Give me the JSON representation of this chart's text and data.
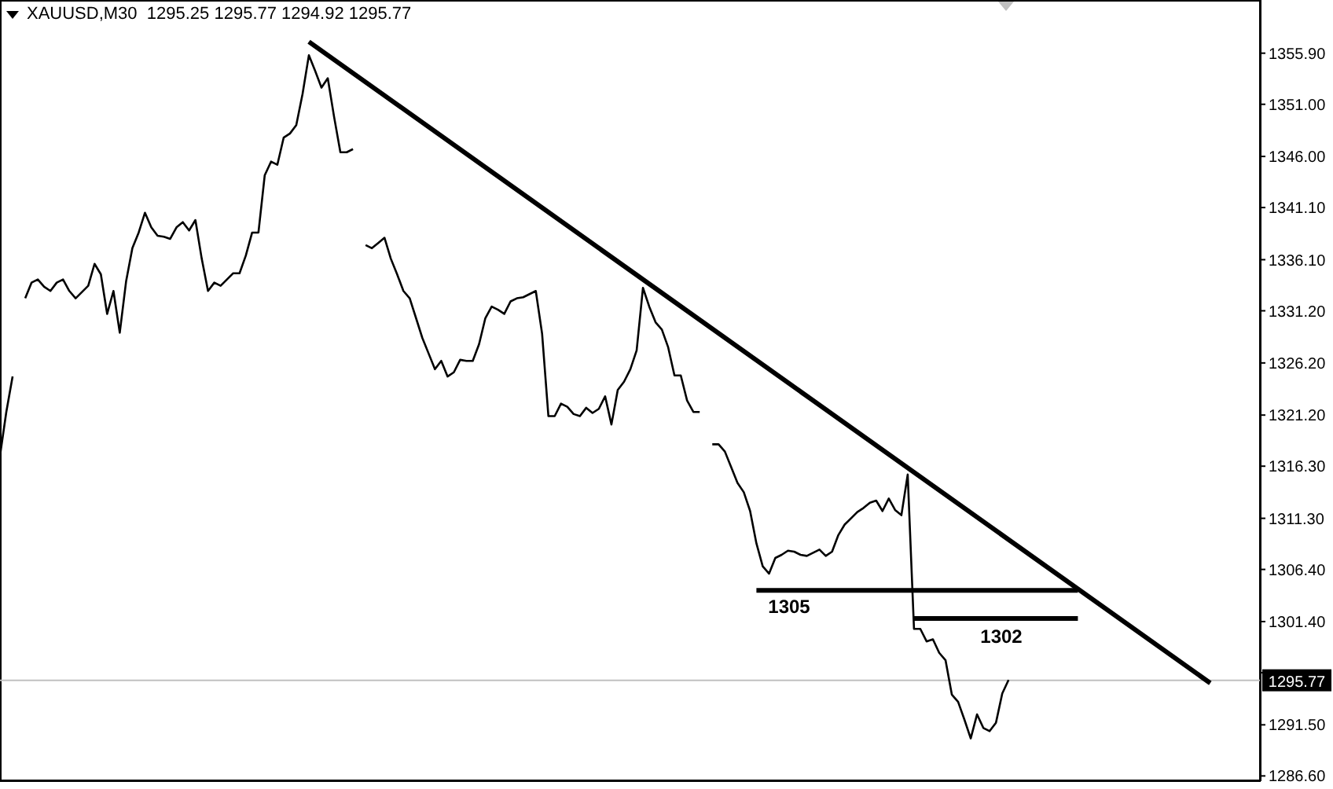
{
  "chart_data": {
    "type": "line",
    "title": "XAUUSD,M30  1295.25 1295.77 1294.92 1295.77",
    "categories": [
      null,
      null,
      null,
      null,
      null,
      null,
      null,
      null,
      null,
      null,
      null,
      null,
      null,
      null,
      null,
      null,
      null,
      null,
      null,
      null,
      null,
      null,
      null,
      null,
      null,
      null,
      null,
      null,
      null,
      null,
      null,
      null,
      null,
      null,
      null,
      null,
      null,
      null,
      null,
      null,
      null,
      null,
      null,
      null,
      null,
      null,
      null,
      null,
      null,
      null,
      null,
      null,
      null,
      null,
      null,
      null,
      null,
      null,
      null,
      null,
      null,
      null,
      null,
      null,
      null,
      null,
      null,
      null,
      null,
      null,
      null,
      null,
      null,
      null,
      null,
      null,
      null,
      null,
      null,
      null,
      null,
      null,
      null,
      null,
      null,
      null,
      null,
      null,
      null,
      null,
      null,
      null,
      null,
      null,
      null,
      null,
      null,
      null,
      null,
      null,
      null,
      null,
      null,
      null,
      null,
      null,
      null,
      null,
      null,
      null,
      null,
      null,
      null,
      null,
      null,
      null,
      null,
      null,
      null,
      null,
      null,
      null,
      null,
      null,
      null,
      null,
      null,
      null,
      null,
      null,
      null,
      null,
      null,
      null,
      null,
      null,
      null,
      null,
      null,
      null,
      null,
      null,
      null,
      null,
      null,
      null,
      null,
      null,
      null,
      null,
      null,
      null,
      null,
      null,
      null,
      null,
      null,
      null,
      null,
      null,
      null,
      null,
      null,
      null,
      null,
      null,
      null,
      null,
      null,
      null,
      null,
      null,
      null,
      null,
      null,
      null,
      null,
      null,
      null,
      null,
      null,
      null,
      null,
      null,
      null,
      null,
      null,
      null,
      null,
      null,
      null,
      null,
      null,
      null,
      null,
      null,
      null,
      null,
      null,
      null,
      null
    ],
    "ylim": [
      1286.1,
      1361.0
    ],
    "yticks": [
      {
        "value": 1286.6,
        "label": "1286.60"
      },
      {
        "value": 1291.5,
        "label": "1291.50"
      },
      {
        "value": 1296.5,
        "label": null
      },
      {
        "value": 1301.4,
        "label": "1301.40"
      },
      {
        "value": 1306.4,
        "label": "1306.40"
      },
      {
        "value": 1311.3,
        "label": "1311.30"
      },
      {
        "value": 1316.3,
        "label": "1316.30"
      },
      {
        "value": 1321.2,
        "label": "1321.20"
      },
      {
        "value": 1326.2,
        "label": "1326.20"
      },
      {
        "value": 1331.2,
        "label": "1331.20"
      },
      {
        "value": 1336.1,
        "label": "1336.10"
      },
      {
        "value": 1341.1,
        "label": "1341.10"
      },
      {
        "value": 1346.0,
        "label": "1346.00"
      },
      {
        "value": 1351.0,
        "label": "1351.00"
      },
      {
        "value": 1355.9,
        "label": "1355.90"
      }
    ],
    "tick_labels": "y",
    "marker": "none",
    "line_style": "solid",
    "series": [
      {
        "color": "#000000",
        "values": [
          1317.3,
          1321.5,
          1324.9,
          null,
          1332.4,
          1333.9,
          1334.2,
          1333.5,
          1333.1,
          1333.9,
          1334.2,
          1333.1,
          1332.4,
          1333.0,
          1333.6,
          1335.7,
          1334.7,
          1330.9,
          1333.1,
          1329.1,
          1334.0,
          1337.2,
          1338.7,
          1340.6,
          1339.2,
          1338.4,
          1338.3,
          1338.1,
          1339.2,
          1339.7,
          1338.9,
          1339.9,
          1336.2,
          1333.1,
          1333.9,
          1333.6,
          1334.2,
          1334.8,
          1334.8,
          1336.5,
          1338.7,
          1338.7,
          1344.2,
          1345.5,
          1345.2,
          1347.8,
          1348.2,
          1349.0,
          1352.0,
          1355.7,
          1354.2,
          1352.6,
          1353.5,
          1349.8,
          1346.4,
          1346.4,
          1346.7,
          null,
          1337.5,
          1337.2,
          1337.7,
          1338.2,
          1336.2,
          1334.7,
          1333.1,
          1332.4,
          1330.5,
          1328.6,
          1327.1,
          1325.6,
          1326.4,
          1324.9,
          1325.3,
          1326.5,
          1326.4,
          1326.4,
          1328.0,
          1330.5,
          1331.6,
          1331.3,
          1330.9,
          1332.1,
          1332.4,
          1332.5,
          1332.8,
          1333.1,
          1329.0,
          1321.1,
          1321.1,
          1322.3,
          1322.0,
          1321.3,
          1321.1,
          1321.9,
          1321.4,
          1321.8,
          1323.0,
          1320.3,
          1323.6,
          1324.4,
          1325.6,
          1327.4,
          1333.4,
          1331.6,
          1330.1,
          1329.4,
          1327.7,
          1325.0,
          1325.0,
          1322.6,
          1321.5,
          1321.5,
          null,
          1318.4,
          1318.4,
          1317.7,
          1316.2,
          1314.7,
          1313.8,
          1312.0,
          1308.9,
          1306.7,
          1306.0,
          1307.5,
          1307.8,
          1308.2,
          1308.1,
          1307.8,
          1307.7,
          1308.0,
          1308.3,
          1307.7,
          1308.1,
          1309.7,
          1310.7,
          1311.3,
          1311.9,
          1312.3,
          1312.8,
          1313.0,
          1312.0,
          1313.2,
          1312.1,
          1311.6,
          1315.5,
          1300.7,
          1300.7,
          1299.5,
          1299.7,
          1298.4,
          1297.7,
          1294.4,
          1293.7,
          1292.0,
          1290.2,
          1292.5,
          1291.2,
          1290.9,
          1291.7,
          1294.5,
          1295.8,
          null,
          null,
          null,
          null,
          null,
          null,
          null,
          null,
          null,
          null,
          null,
          null,
          null,
          null,
          null,
          null,
          null,
          null,
          null,
          null,
          null,
          null,
          null,
          null,
          null,
          null,
          null,
          null,
          null,
          null,
          null,
          null,
          null,
          null,
          null,
          null,
          null,
          null,
          null,
          null
        ]
      },
      {
        "color": "#000000",
        "values": [
          null,
          null,
          null,
          null,
          null,
          null,
          null,
          null,
          null,
          null,
          null,
          null,
          null,
          null,
          null,
          null,
          null,
          null,
          null,
          null,
          null,
          null,
          null,
          null,
          null,
          null,
          null,
          null,
          null,
          null,
          null,
          null,
          null,
          null,
          null,
          null,
          null,
          null,
          null,
          null,
          null,
          null,
          null,
          null,
          null,
          null,
          null,
          null,
          null,
          1357.0,
          null,
          null,
          null,
          null,
          null,
          null,
          null,
          null,
          null,
          null,
          null,
          null,
          null,
          null,
          null,
          null,
          null,
          null,
          null,
          null,
          null,
          null,
          null,
          null,
          null,
          null,
          null,
          null,
          null,
          null,
          null,
          null,
          null,
          null,
          null,
          null,
          null,
          null,
          null,
          null,
          null,
          null,
          null,
          null,
          null,
          null,
          null,
          null,
          null,
          null,
          null,
          null,
          null,
          null,
          null,
          null,
          null,
          null,
          null,
          null,
          null,
          null,
          null,
          null,
          null,
          null,
          null,
          null,
          null,
          null,
          null,
          null,
          null,
          null,
          null,
          null,
          null,
          null,
          null,
          null,
          null,
          null,
          null,
          null,
          null,
          null,
          null,
          null,
          null,
          null,
          null,
          null,
          null,
          null,
          null,
          null,
          null,
          null,
          null,
          null,
          null,
          null,
          null,
          null,
          null,
          null,
          null,
          null,
          null,
          null,
          null,
          null,
          null,
          null,
          null,
          null,
          null,
          null,
          null,
          null,
          null,
          null,
          null,
          null,
          null,
          null,
          null,
          null,
          null,
          null,
          null,
          null,
          null,
          null,
          null,
          null,
          null,
          null,
          null,
          null,
          null,
          null,
          1295.5,
          null,
          null,
          null,
          null,
          null,
          null,
          null,
          null
        ]
      },
      {
        "color": "#000000",
        "values": [
          null,
          null,
          null,
          null,
          null,
          null,
          null,
          null,
          null,
          null,
          null,
          null,
          null,
          null,
          null,
          null,
          null,
          null,
          null,
          null,
          null,
          null,
          null,
          null,
          null,
          null,
          null,
          null,
          null,
          null,
          null,
          null,
          null,
          null,
          null,
          null,
          null,
          null,
          null,
          null,
          null,
          null,
          null,
          null,
          null,
          null,
          null,
          null,
          null,
          null,
          null,
          null,
          null,
          null,
          null,
          null,
          null,
          null,
          null,
          null,
          null,
          null,
          null,
          null,
          null,
          null,
          null,
          null,
          null,
          null,
          null,
          null,
          null,
          null,
          null,
          null,
          null,
          null,
          null,
          null,
          null,
          null,
          null,
          null,
          null,
          null,
          null,
          null,
          null,
          null,
          null,
          null,
          null,
          null,
          null,
          null,
          null,
          null,
          null,
          null,
          null,
          null,
          null,
          null,
          null,
          null,
          null,
          null,
          null,
          null,
          null,
          null,
          null,
          null,
          null,
          null,
          null,
          null,
          null,
          null,
          1304.4,
          null,
          null,
          null,
          null,
          null,
          null,
          null,
          null,
          null,
          null,
          null,
          null,
          null,
          null,
          null,
          null,
          null,
          null,
          null,
          null,
          null,
          null,
          null,
          null,
          null,
          null,
          null,
          null,
          null,
          null,
          null,
          null,
          null,
          null,
          null,
          null,
          null,
          null,
          null,
          null,
          null,
          null,
          null,
          null,
          null,
          null,
          null,
          null,
          null,
          null,
          1304.4,
          null,
          null,
          null,
          null,
          null,
          null,
          null,
          null,
          null,
          null,
          null,
          null,
          null,
          null,
          null,
          null,
          null,
          null,
          null,
          null,
          null,
          null,
          null,
          null,
          null,
          null,
          null,
          null,
          null
        ]
      },
      {
        "color": "#000000",
        "values": [
          null,
          null,
          null,
          null,
          null,
          null,
          null,
          null,
          null,
          null,
          null,
          null,
          null,
          null,
          null,
          null,
          null,
          null,
          null,
          null,
          null,
          null,
          null,
          null,
          null,
          null,
          null,
          null,
          null,
          null,
          null,
          null,
          null,
          null,
          null,
          null,
          null,
          null,
          null,
          null,
          null,
          null,
          null,
          null,
          null,
          null,
          null,
          null,
          null,
          null,
          null,
          null,
          null,
          null,
          null,
          null,
          null,
          null,
          null,
          null,
          null,
          null,
          null,
          null,
          null,
          null,
          null,
          null,
          null,
          null,
          null,
          null,
          null,
          null,
          null,
          null,
          null,
          null,
          null,
          null,
          null,
          null,
          null,
          null,
          null,
          null,
          null,
          null,
          null,
          null,
          null,
          null,
          null,
          null,
          null,
          null,
          null,
          null,
          null,
          null,
          null,
          null,
          null,
          null,
          null,
          null,
          null,
          null,
          null,
          null,
          null,
          null,
          null,
          null,
          null,
          null,
          null,
          null,
          null,
          null,
          null,
          null,
          null,
          null,
          null,
          null,
          null,
          null,
          null,
          null,
          null,
          null,
          null,
          null,
          null,
          null,
          null,
          null,
          null,
          null,
          null,
          null,
          null,
          null,
          null,
          1301.7,
          null,
          null,
          null,
          null,
          null,
          null,
          null,
          null,
          null,
          null,
          null,
          null,
          null,
          null,
          null,
          null,
          null,
          null,
          null,
          null,
          null,
          null,
          null,
          null,
          null,
          1301.7,
          null,
          null,
          null,
          null,
          null,
          null,
          null,
          null,
          null,
          null,
          null,
          null,
          null,
          null,
          null,
          null,
          null,
          null,
          null,
          null,
          null,
          null,
          null,
          null,
          null,
          null,
          null,
          null,
          null
        ]
      }
    ],
    "ref_lines": [
      {
        "axis": "y",
        "value": 1295.77,
        "label": "1295.77",
        "color": "#c0c0c0"
      }
    ],
    "annotations": [
      "1305",
      "1302"
    ]
  }
}
